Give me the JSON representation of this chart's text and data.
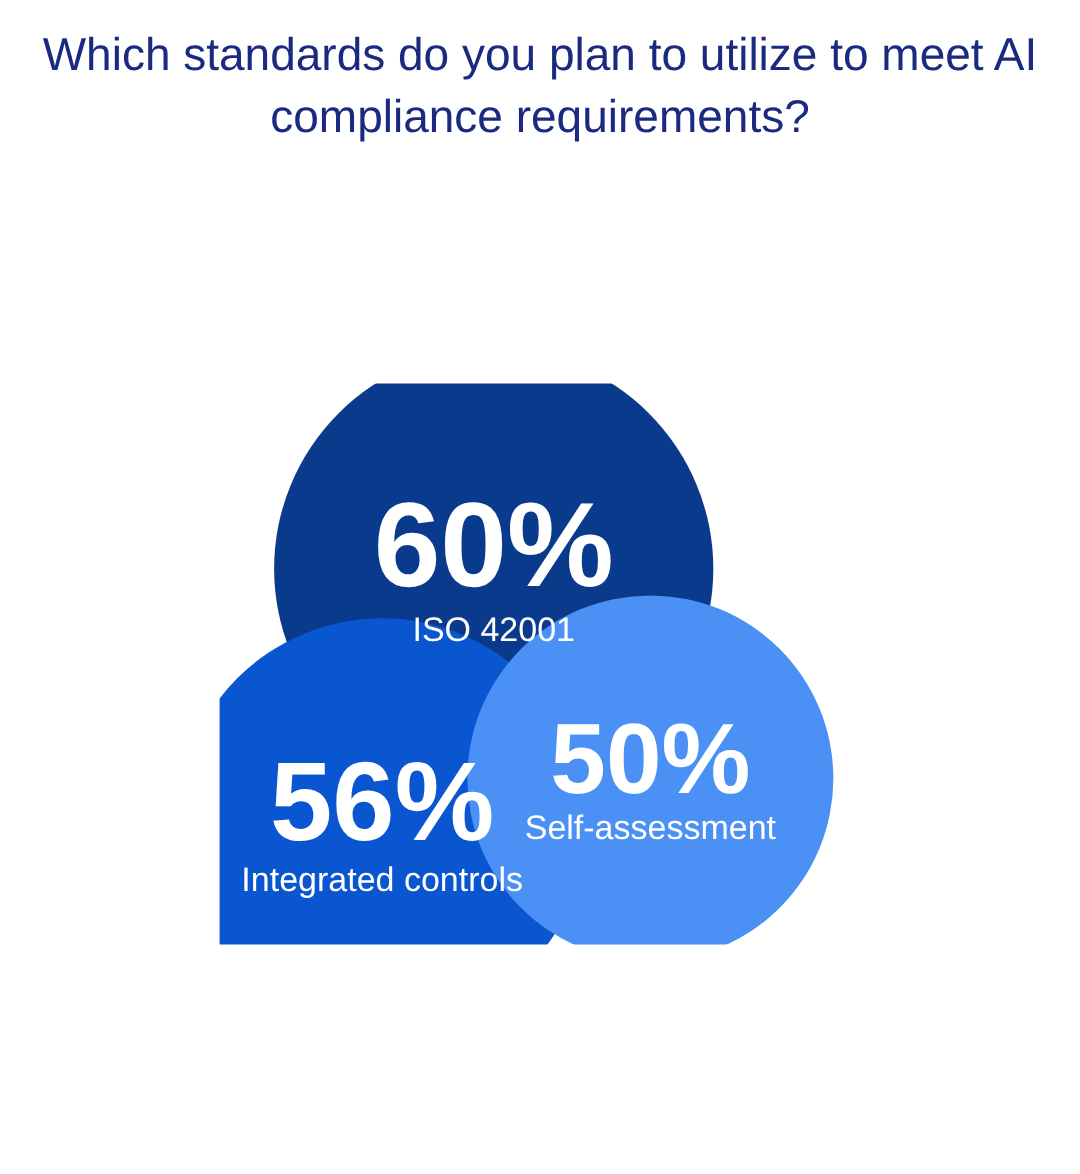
{
  "chart_data": {
    "type": "other",
    "title": "Which standards do you plan to utilize to meet AI compliance requirements?",
    "categories": [
      "ISO 42001",
      "Integrated controls",
      "Self-assessment"
    ],
    "values": [
      60,
      56,
      50
    ],
    "value_labels": [
      "60%",
      "56%",
      "50%"
    ],
    "colors": [
      "#0a3a8c",
      "#0a55d0",
      "#4a90f5"
    ]
  }
}
